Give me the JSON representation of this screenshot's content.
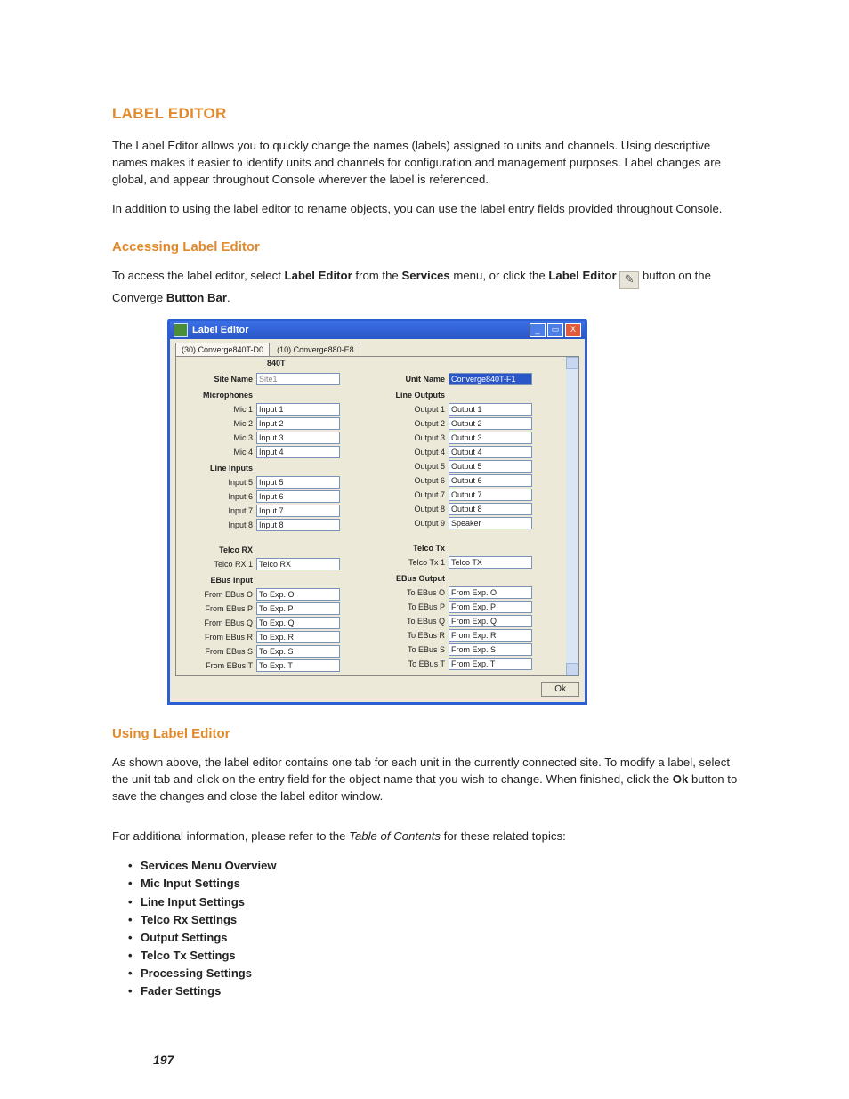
{
  "title": "LABEL EDITOR",
  "intro1": "The Label Editor allows you to quickly change the names (labels) assigned to units and channels. Using descriptive names makes it easier to identify units and channels for configuration and management purposes. Label changes are global, and appear throughout Console wherever the label is referenced.",
  "intro2": "In addition to using the label editor to rename objects, you can use the label entry fields provided throughout Console.",
  "h_access": "Accessing Label Editor",
  "access_pre": "To access the label editor, select ",
  "access_b1": "Label Editor",
  "access_mid1": " from the ",
  "access_b2": "Services",
  "access_mid2": " menu, or click the ",
  "access_b3": "Label Editor",
  "access_post": " button on the Converge ",
  "access_b4": "Button Bar",
  "access_end": ".",
  "win": {
    "title": "Label Editor",
    "tabs": [
      "(30) Converge840T-D0",
      "(10) Converge880-E8"
    ],
    "unit_header": "840T",
    "left_header": "Site Name",
    "left_sub": "Microphones",
    "site_val": "Site1",
    "mics": [
      {
        "l": "Mic 1",
        "v": "Input 1"
      },
      {
        "l": "Mic 2",
        "v": "Input 2"
      },
      {
        "l": "Mic 3",
        "v": "Input 3"
      },
      {
        "l": "Mic 4",
        "v": "Input 4"
      }
    ],
    "line_hdr": "Line Inputs",
    "lines": [
      {
        "l": "Input 5",
        "v": "Input 5"
      },
      {
        "l": "Input 6",
        "v": "Input 6"
      },
      {
        "l": "Input 7",
        "v": "Input 7"
      },
      {
        "l": "Input 8",
        "v": "Input 8"
      }
    ],
    "telcorx_hdr": "Telco RX",
    "telcorx": {
      "l": "Telco RX 1",
      "v": "Telco RX"
    },
    "ebusin_hdr": "EBus Input",
    "ebusin": [
      {
        "l": "From EBus O",
        "v": "To Exp. O"
      },
      {
        "l": "From EBus P",
        "v": "To Exp. P"
      },
      {
        "l": "From EBus Q",
        "v": "To Exp. Q"
      },
      {
        "l": "From EBus R",
        "v": "To Exp. R"
      },
      {
        "l": "From EBus S",
        "v": "To Exp. S"
      },
      {
        "l": "From EBus T",
        "v": "To Exp. T"
      }
    ],
    "right_header": "Unit Name",
    "right_sub": "Line Outputs",
    "unit_val": "Converge840T-F1",
    "outs": [
      {
        "l": "Output 1",
        "v": "Output 1"
      },
      {
        "l": "Output 2",
        "v": "Output 2"
      },
      {
        "l": "Output 3",
        "v": "Output 3"
      },
      {
        "l": "Output 4",
        "v": "Output 4"
      },
      {
        "l": "Output 5",
        "v": "Output 5"
      },
      {
        "l": "Output 6",
        "v": "Output 6"
      },
      {
        "l": "Output 7",
        "v": "Output 7"
      },
      {
        "l": "Output 8",
        "v": "Output 8"
      },
      {
        "l": "Output 9",
        "v": "Speaker"
      }
    ],
    "telcotx_hdr": "Telco Tx",
    "telcotx": {
      "l": "Telco Tx 1",
      "v": "Telco TX"
    },
    "ebusout_hdr": "EBus Output",
    "ebusout": [
      {
        "l": "To EBus O",
        "v": "From Exp. O"
      },
      {
        "l": "To EBus P",
        "v": "From Exp. P"
      },
      {
        "l": "To EBus Q",
        "v": "From Exp. Q"
      },
      {
        "l": "To EBus R",
        "v": "From Exp. R"
      },
      {
        "l": "To EBus S",
        "v": "From Exp. S"
      },
      {
        "l": "To EBus T",
        "v": "From Exp. T"
      }
    ],
    "ok": "Ok"
  },
  "h_using": "Using Label Editor",
  "using_p": "As shown above, the label editor contains one tab for each unit in the currently connected site. To modify a label, select the unit tab and click on the entry field for the object name that you wish to change. When finished, click the ",
  "using_b": "Ok",
  "using_end": " button to save the changes and close the label editor window.",
  "more_pre": "For additional information, please refer to the ",
  "more_i": "Table of Contents",
  "more_post": " for these related topics:",
  "topics": [
    "Services Menu Overview",
    "Mic Input Settings",
    "Line Input Settings",
    "Telco Rx Settings",
    "Output Settings",
    "Telco Tx Settings",
    "Processing Settings",
    "Fader Settings"
  ],
  "page_number": "197"
}
